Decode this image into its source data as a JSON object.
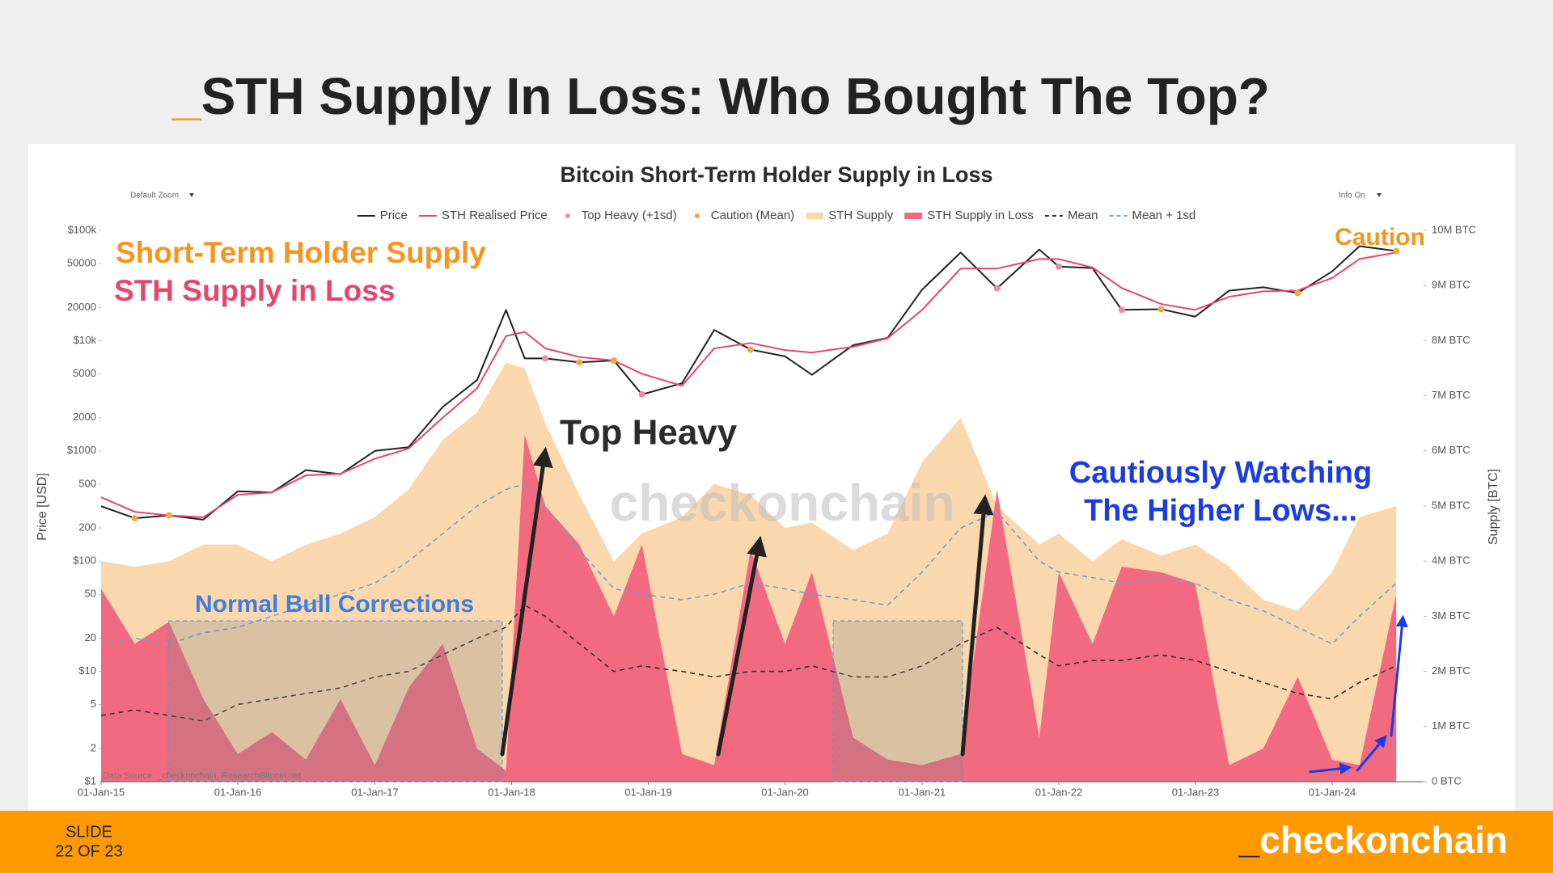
{
  "slide": {
    "title": {
      "prefix": "_",
      "text": "STH Supply In Loss: Who Bought The Top?"
    }
  },
  "footer": {
    "slide_label": "SLIDE",
    "slide_number": "22 OF 23",
    "brand": {
      "prefix": "_",
      "text": "checkonchain"
    }
  },
  "chart_data": {
    "type": "timeseries",
    "title": "Bitcoin Short-Term Holder Supply in Loss",
    "controls": [
      "Default Zoom",
      "Info On"
    ],
    "source": "Data Source: _checkonchain, ResearchBitcoin.net",
    "watermark": "checkonchain",
    "ylabel": "Price [USD]",
    "y2label": "Supply [BTC]",
    "annotations": {
      "sth_supply": "Short-Term Holder Supply",
      "sth_loss": "STH Supply in Loss",
      "top_heavy": "Top Heavy",
      "corrections": "Normal Bull Corrections",
      "watching": [
        "Cautiously Watching",
        "The Higher Lows..."
      ],
      "caution": "Caution"
    },
    "ylog": true,
    "grid": false,
    "xlim": [
      "2015-01-01",
      "2024-09-01"
    ],
    "ylim": [
      1,
      100000
    ],
    "y2lim": [
      0,
      10000000
    ],
    "xticks": [
      {
        "value": "2015-01-01",
        "label": "01-Jan-15"
      },
      {
        "value": "2016-01-01",
        "label": "01-Jan-16"
      },
      {
        "value": "2017-01-01",
        "label": "01-Jan-17"
      },
      {
        "value": "2018-01-01",
        "label": "01-Jan-18"
      },
      {
        "value": "2019-01-01",
        "label": "01-Jan-19"
      },
      {
        "value": "2020-01-01",
        "label": "01-Jan-20"
      },
      {
        "value": "2021-01-01",
        "label": "01-Jan-21"
      },
      {
        "value": "2022-01-01",
        "label": "01-Jan-22"
      },
      {
        "value": "2023-01-01",
        "label": "01-Jan-23"
      },
      {
        "value": "2024-01-01",
        "label": "01-Jan-24"
      }
    ],
    "yticks": [
      {
        "value": 1,
        "label": "$1"
      },
      2,
      5,
      {
        "value": 10,
        "label": "$10"
      },
      20,
      50,
      {
        "value": 100,
        "label": "$100"
      },
      200,
      500,
      {
        "value": 1000,
        "label": "$1000"
      },
      2000,
      5000,
      {
        "value": 10000,
        "label": "$10k"
      },
      20000,
      50000,
      {
        "value": 100000,
        "label": "$100k"
      }
    ],
    "y2ticks": [
      {
        "value": 0,
        "label": "0 BTC"
      },
      {
        "value": 1000000,
        "label": "1M BTC"
      },
      {
        "value": 2000000,
        "label": "2M BTC"
      },
      {
        "value": 3000000,
        "label": "3M BTC"
      },
      {
        "value": 4000000,
        "label": "4M BTC"
      },
      {
        "value": 5000000,
        "label": "5M BTC"
      },
      {
        "value": 6000000,
        "label": "6M BTC"
      },
      {
        "value": 7000000,
        "label": "7M BTC"
      },
      {
        "value": 8000000,
        "label": "8M BTC"
      },
      {
        "value": 9000000,
        "label": "9M BTC"
      },
      {
        "value": 10000000,
        "label": "10M BTC"
      }
    ],
    "x": [
      "2015-01-01",
      "2015-04-01",
      "2015-07-01",
      "2015-10-01",
      "2016-01-01",
      "2016-04-01",
      "2016-07-01",
      "2016-10-01",
      "2017-01-01",
      "2017-04-01",
      "2017-07-01",
      "2017-10-01",
      "2017-12-17",
      "2018-02-05",
      "2018-04-01",
      "2018-07-01",
      "2018-10-01",
      "2018-12-15",
      "2019-04-01",
      "2019-06-26",
      "2019-10-01",
      "2020-01-01",
      "2020-03-13",
      "2020-07-01",
      "2020-10-01",
      "2021-01-01",
      "2021-04-14",
      "2021-07-20",
      "2021-11-10",
      "2022-01-01",
      "2022-04-01",
      "2022-06-18",
      "2022-10-01",
      "2022-12-31",
      "2023-04-01",
      "2023-07-01",
      "2023-10-01",
      "2024-01-01",
      "2024-03-14",
      "2024-06-20"
    ],
    "series": [
      {
        "name": "Price",
        "color": "#222222",
        "style": "line",
        "axis": "y",
        "values": [
          315,
          245,
          260,
          238,
          430,
          420,
          670,
          615,
          1000,
          1080,
          2500,
          4400,
          19000,
          6900,
          6900,
          6350,
          6600,
          3250,
          4100,
          12500,
          8300,
          7200,
          4900,
          9100,
          10600,
          29000,
          63000,
          29800,
          67000,
          47000,
          45500,
          19000,
          19300,
          16500,
          28400,
          30500,
          27000,
          42500,
          72000,
          65000
        ]
      },
      {
        "name": "STH Realised Price",
        "color": "#e8456c",
        "style": "line",
        "axis": "y",
        "values": [
          380,
          280,
          260,
          250,
          400,
          420,
          600,
          620,
          850,
          1050,
          2000,
          3700,
          11000,
          12000,
          8500,
          7100,
          6600,
          5000,
          3900,
          8500,
          9500,
          8200,
          7800,
          8800,
          10500,
          19000,
          45000,
          45000,
          55000,
          55000,
          46000,
          30000,
          21500,
          19000,
          25000,
          28000,
          28500,
          37000,
          55000,
          63000
        ]
      },
      {
        "name": "Top Heavy (+1sd)",
        "color": "#f28ca0",
        "style": "markers",
        "axis": "y",
        "values": [
          null,
          null,
          null,
          null,
          null,
          null,
          null,
          null,
          null,
          null,
          null,
          null,
          null,
          null,
          6900,
          null,
          null,
          3250,
          null,
          null,
          null,
          null,
          null,
          null,
          null,
          null,
          null,
          29800,
          null,
          47000,
          null,
          19000,
          null,
          null,
          null,
          null,
          null,
          null,
          null,
          null
        ]
      },
      {
        "name": "Caution (Mean)",
        "color": "#f5a64a",
        "style": "markers",
        "axis": "y",
        "values": [
          null,
          245,
          260,
          null,
          null,
          null,
          null,
          null,
          null,
          null,
          null,
          null,
          null,
          null,
          null,
          6350,
          6600,
          null,
          null,
          null,
          8300,
          null,
          null,
          null,
          null,
          null,
          null,
          null,
          null,
          null,
          null,
          null,
          19300,
          null,
          null,
          null,
          27000,
          null,
          null,
          65000
        ]
      },
      {
        "name": "STH Supply",
        "color": "#fbd7ae",
        "style": "area",
        "axis": "y2",
        "values": [
          4000000,
          3900000,
          4000000,
          4300000,
          4300000,
          4000000,
          4300000,
          4500000,
          4800000,
          5300000,
          6200000,
          6700000,
          7600000,
          7500000,
          6500000,
          5200000,
          4000000,
          4500000,
          4800000,
          5400000,
          5200000,
          4600000,
          4700000,
          4200000,
          4500000,
          5800000,
          6600000,
          5000000,
          4300000,
          4500000,
          4000000,
          4400000,
          4100000,
          4300000,
          3900000,
          3300000,
          3100000,
          3800000,
          4800000,
          5000000
        ]
      },
      {
        "name": "STH Supply in Loss",
        "color": "#f26a80",
        "style": "area",
        "axis": "y2",
        "values": [
          3500000,
          2500000,
          2900000,
          1500000,
          500000,
          900000,
          400000,
          1500000,
          300000,
          1700000,
          2500000,
          600000,
          200000,
          6300000,
          5000000,
          4300000,
          3000000,
          4300000,
          500000,
          300000,
          4200000,
          2500000,
          3800000,
          800000,
          400000,
          300000,
          500000,
          5300000,
          800000,
          3800000,
          2500000,
          3900000,
          3800000,
          3600000,
          300000,
          600000,
          1900000,
          400000,
          300000,
          3400000
        ]
      },
      {
        "name": "Mean",
        "color": "#333333",
        "style": "dashed",
        "axis": "y2",
        "values": [
          1200000,
          1300000,
          1200000,
          1100000,
          1400000,
          1500000,
          1600000,
          1700000,
          1900000,
          2000000,
          2300000,
          2600000,
          2800000,
          3200000,
          3000000,
          2500000,
          2000000,
          2100000,
          2000000,
          1900000,
          2000000,
          2000000,
          2100000,
          1900000,
          1900000,
          2100000,
          2500000,
          2800000,
          2300000,
          2100000,
          2200000,
          2200000,
          2300000,
          2200000,
          2000000,
          1800000,
          1600000,
          1500000,
          1800000,
          2100000
        ]
      },
      {
        "name": "Mean + 1sd",
        "color": "#6f9fde",
        "style": "dashed",
        "axis": "y2",
        "values": [
          2500000,
          2600000,
          2500000,
          2700000,
          2800000,
          3000000,
          3200000,
          3400000,
          3600000,
          4000000,
          4500000,
          5000000,
          5300000,
          5400000,
          5000000,
          4200000,
          3500000,
          3400000,
          3300000,
          3400000,
          3600000,
          3500000,
          3400000,
          3300000,
          3200000,
          3800000,
          4600000,
          4900000,
          4000000,
          3800000,
          3700000,
          3600000,
          3700000,
          3600000,
          3300000,
          3100000,
          2800000,
          2500000,
          3000000,
          3600000
        ]
      }
    ]
  }
}
